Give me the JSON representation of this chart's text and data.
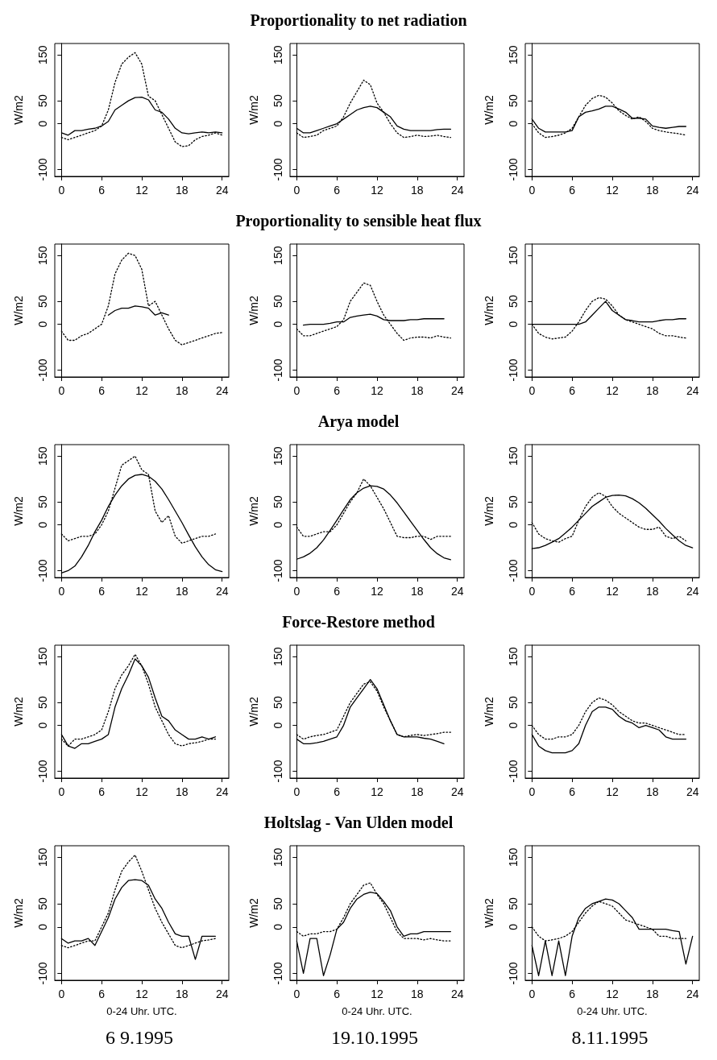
{
  "chart_data": [
    {
      "type": "line",
      "ylabel": "W/m2",
      "xlim": [
        -1,
        25
      ],
      "ylim": [
        -115,
        175
      ],
      "xticks": [
        0,
        6,
        12,
        18,
        24
      ],
      "yticks": [
        -100,
        0,
        50,
        150
      ],
      "x": [
        0,
        1,
        2,
        3,
        4,
        5,
        6,
        7,
        8,
        9,
        10,
        11,
        12,
        13,
        14,
        15,
        16,
        17,
        18,
        19,
        20,
        21,
        22,
        23,
        24
      ],
      "marker": "none",
      "series": [
        {
          "color": "#000000",
          "line_style": "solid",
          "values": [
            -20,
            -25,
            -15,
            -15,
            -12,
            -10,
            -5,
            5,
            30,
            40,
            50,
            57,
            58,
            52,
            30,
            25,
            10,
            -10,
            -20,
            -22,
            -20,
            -18,
            -20,
            -18,
            -20
          ]
        },
        {
          "color": "#000000",
          "line_style": "dotted",
          "values": [
            -30,
            -35,
            -30,
            -25,
            -20,
            -15,
            -5,
            30,
            90,
            130,
            145,
            155,
            130,
            60,
            50,
            20,
            -10,
            -40,
            -50,
            -48,
            -35,
            -28,
            -25,
            -20,
            -25
          ]
        }
      ]
    },
    {
      "type": "line",
      "title": "Proportionality to net radiation",
      "ylabel": "W/m2",
      "xlim": [
        -1,
        25
      ],
      "ylim": [
        -115,
        175
      ],
      "xticks": [
        0,
        6,
        12,
        18,
        24
      ],
      "yticks": [
        -100,
        0,
        50,
        150
      ],
      "x": [
        0,
        1,
        2,
        3,
        4,
        5,
        6,
        7,
        8,
        9,
        10,
        11,
        12,
        13,
        14,
        15,
        16,
        17,
        18,
        19,
        20,
        21,
        22,
        23
      ],
      "marker": "none",
      "series": [
        {
          "color": "#000000",
          "line_style": "solid",
          "values": [
            -10,
            -20,
            -20,
            -15,
            -10,
            -5,
            0,
            10,
            20,
            30,
            35,
            38,
            35,
            25,
            15,
            -5,
            -12,
            -15,
            -15,
            -15,
            -15,
            -13,
            -12,
            -12
          ]
        },
        {
          "color": "#000000",
          "line_style": "dotted",
          "values": [
            -20,
            -30,
            -28,
            -25,
            -15,
            -10,
            -5,
            15,
            45,
            70,
            95,
            85,
            45,
            25,
            0,
            -20,
            -30,
            -28,
            -25,
            -28,
            -27,
            -25,
            -28,
            -30
          ]
        }
      ]
    },
    {
      "type": "line",
      "ylabel": "W/m2",
      "xlim": [
        -1,
        25
      ],
      "ylim": [
        -115,
        175
      ],
      "xticks": [
        0,
        6,
        12,
        18,
        24
      ],
      "yticks": [
        -100,
        0,
        50,
        150
      ],
      "x": [
        0,
        1,
        2,
        3,
        4,
        5,
        6,
        7,
        8,
        9,
        10,
        11,
        12,
        13,
        14,
        15,
        16,
        17,
        18,
        19,
        20,
        21,
        22,
        23
      ],
      "marker": "none",
      "series": [
        {
          "color": "#000000",
          "line_style": "solid",
          "values": [
            10,
            -10,
            -18,
            -18,
            -18,
            -18,
            -15,
            15,
            25,
            28,
            32,
            38,
            38,
            32,
            25,
            12,
            12,
            10,
            -5,
            -8,
            -10,
            -8,
            -6,
            -6
          ]
        },
        {
          "color": "#000000",
          "line_style": "dotted",
          "values": [
            0,
            -20,
            -30,
            -28,
            -25,
            -20,
            -10,
            15,
            40,
            55,
            62,
            58,
            45,
            28,
            18,
            10,
            15,
            5,
            -10,
            -15,
            -18,
            -20,
            -22,
            -25
          ]
        }
      ]
    },
    {
      "type": "line",
      "ylabel": "W/m2",
      "xlim": [
        -1,
        25
      ],
      "ylim": [
        -115,
        175
      ],
      "xticks": [
        0,
        6,
        12,
        18,
        24
      ],
      "yticks": [
        -100,
        0,
        50,
        150
      ],
      "x": [
        0,
        1,
        2,
        3,
        4,
        5,
        6,
        7,
        8,
        9,
        10,
        11,
        12,
        13,
        14,
        15,
        16,
        17,
        18,
        19,
        20,
        21,
        22,
        23,
        24
      ],
      "marker": "none",
      "series": [
        {
          "color": "#000000",
          "line_style": "solid",
          "values": [
            null,
            null,
            null,
            null,
            null,
            null,
            null,
            20,
            30,
            35,
            35,
            40,
            38,
            35,
            20,
            25,
            20,
            null,
            null,
            null,
            null,
            null,
            null,
            null,
            null
          ]
        },
        {
          "color": "#000000",
          "line_style": "dotted",
          "values": [
            -15,
            -35,
            -35,
            -25,
            -20,
            -10,
            0,
            40,
            110,
            140,
            155,
            150,
            120,
            40,
            50,
            20,
            -10,
            -35,
            -45,
            -40,
            -35,
            -30,
            -25,
            -20,
            -18
          ]
        }
      ]
    },
    {
      "type": "line",
      "title": "Proportionality to sensible heat flux",
      "ylabel": "W/m2",
      "xlim": [
        -1,
        25
      ],
      "ylim": [
        -115,
        175
      ],
      "xticks": [
        0,
        6,
        12,
        18,
        24
      ],
      "yticks": [
        -100,
        0,
        50,
        150
      ],
      "x": [
        0,
        1,
        2,
        3,
        4,
        5,
        6,
        7,
        8,
        9,
        10,
        11,
        12,
        13,
        14,
        15,
        16,
        17,
        18,
        19,
        20,
        21,
        22,
        23
      ],
      "marker": "none",
      "series": [
        {
          "color": "#000000",
          "line_style": "solid",
          "values": [
            null,
            -2,
            0,
            0,
            0,
            2,
            5,
            5,
            15,
            18,
            20,
            22,
            18,
            10,
            8,
            8,
            8,
            10,
            10,
            12,
            12,
            12,
            12,
            null
          ]
        },
        {
          "color": "#000000",
          "line_style": "dotted",
          "values": [
            -10,
            -25,
            -25,
            -20,
            -15,
            -10,
            -5,
            10,
            50,
            70,
            90,
            85,
            50,
            20,
            0,
            -20,
            -35,
            -30,
            -28,
            -28,
            -30,
            -25,
            -28,
            -30
          ]
        }
      ]
    },
    {
      "type": "line",
      "ylabel": "W/m2",
      "xlim": [
        -1,
        25
      ],
      "ylim": [
        -115,
        175
      ],
      "xticks": [
        0,
        6,
        12,
        18,
        24
      ],
      "yticks": [
        -100,
        0,
        50,
        150
      ],
      "x": [
        0,
        1,
        2,
        3,
        4,
        5,
        6,
        7,
        8,
        9,
        10,
        11,
        12,
        13,
        14,
        15,
        16,
        17,
        18,
        19,
        20,
        21,
        22,
        23
      ],
      "marker": "none",
      "series": [
        {
          "color": "#000000",
          "line_style": "solid",
          "values": [
            0,
            0,
            0,
            0,
            0,
            0,
            0,
            0,
            5,
            20,
            35,
            50,
            30,
            20,
            10,
            8,
            5,
            5,
            5,
            8,
            10,
            10,
            12,
            12
          ]
        },
        {
          "color": "#000000",
          "line_style": "dotted",
          "values": [
            0,
            -20,
            -28,
            -32,
            -30,
            -28,
            -15,
            5,
            30,
            50,
            58,
            55,
            40,
            20,
            10,
            5,
            0,
            -5,
            -10,
            -20,
            -25,
            -25,
            -28,
            -30
          ]
        }
      ]
    },
    {
      "type": "line",
      "ylabel": "W/m2",
      "xlim": [
        -1,
        25
      ],
      "ylim": [
        -115,
        175
      ],
      "xticks": [
        0,
        6,
        12,
        18,
        24
      ],
      "yticks": [
        -100,
        0,
        50,
        150
      ],
      "x": [
        0,
        1,
        2,
        3,
        4,
        5,
        6,
        7,
        8,
        9,
        10,
        11,
        12,
        13,
        14,
        15,
        16,
        17,
        18,
        19,
        20,
        21,
        22,
        23,
        24
      ],
      "marker": "none",
      "series": [
        {
          "color": "#000000",
          "line_style": "solid",
          "values": [
            -105,
            -100,
            -90,
            -70,
            -45,
            -15,
            10,
            40,
            65,
            85,
            100,
            108,
            110,
            106,
            95,
            78,
            55,
            30,
            5,
            -22,
            -48,
            -70,
            -87,
            -98,
            -102
          ]
        },
        {
          "color": "#000000",
          "line_style": "dotted",
          "values": [
            -20,
            -35,
            -30,
            -25,
            -25,
            -20,
            0,
            30,
            80,
            130,
            140,
            150,
            120,
            110,
            30,
            5,
            20,
            -25,
            -40,
            -35,
            -30,
            -25,
            -25,
            -20,
            null
          ]
        }
      ]
    },
    {
      "type": "line",
      "title": "Arya model",
      "ylabel": "W/m2",
      "xlim": [
        -1,
        25
      ],
      "ylim": [
        -115,
        175
      ],
      "xticks": [
        0,
        6,
        12,
        18,
        24
      ],
      "yticks": [
        -100,
        0,
        50,
        150
      ],
      "x": [
        0,
        1,
        2,
        3,
        4,
        5,
        6,
        7,
        8,
        9,
        10,
        11,
        12,
        13,
        14,
        15,
        16,
        17,
        18,
        19,
        20,
        21,
        22,
        23
      ],
      "marker": "none",
      "series": [
        {
          "color": "#000000",
          "line_style": "solid",
          "values": [
            -75,
            -70,
            -62,
            -50,
            -33,
            -12,
            10,
            33,
            55,
            70,
            80,
            85,
            84,
            78,
            65,
            48,
            28,
            8,
            -12,
            -32,
            -50,
            -63,
            -72,
            -76
          ]
        },
        {
          "color": "#000000",
          "line_style": "dotted",
          "values": [
            -5,
            -25,
            -25,
            -20,
            -15,
            -15,
            0,
            25,
            50,
            70,
            100,
            85,
            60,
            35,
            5,
            -25,
            -28,
            -28,
            -25,
            -25,
            -32,
            -25,
            -25,
            -25
          ]
        }
      ]
    },
    {
      "type": "line",
      "ylabel": "W/m2",
      "xlim": [
        -1,
        25
      ],
      "ylim": [
        -115,
        175
      ],
      "xticks": [
        0,
        6,
        12,
        18,
        24
      ],
      "yticks": [
        -100,
        0,
        50,
        150
      ],
      "x": [
        0,
        1,
        2,
        3,
        4,
        5,
        6,
        7,
        8,
        9,
        10,
        11,
        12,
        13,
        14,
        15,
        16,
        17,
        18,
        19,
        20,
        21,
        22,
        23,
        24
      ],
      "marker": "none",
      "series": [
        {
          "color": "#000000",
          "line_style": "solid",
          "values": [
            -52,
            -50,
            -45,
            -38,
            -30,
            -18,
            -5,
            10,
            25,
            40,
            50,
            60,
            64,
            65,
            63,
            57,
            48,
            36,
            22,
            8,
            -8,
            -22,
            -35,
            -45,
            -50
          ]
        },
        {
          "color": "#000000",
          "line_style": "dotted",
          "values": [
            5,
            -20,
            -30,
            -35,
            -38,
            -30,
            -25,
            10,
            40,
            60,
            70,
            62,
            40,
            25,
            15,
            5,
            -5,
            -10,
            -10,
            -5,
            -25,
            -30,
            -25,
            -35,
            null
          ]
        }
      ]
    },
    {
      "type": "line",
      "ylabel": "W/m2",
      "xlim": [
        -1,
        25
      ],
      "ylim": [
        -115,
        175
      ],
      "xticks": [
        0,
        6,
        12,
        18,
        24
      ],
      "yticks": [
        -100,
        0,
        50,
        150
      ],
      "x": [
        0,
        1,
        2,
        3,
        4,
        5,
        6,
        7,
        8,
        9,
        10,
        11,
        12,
        13,
        14,
        15,
        16,
        17,
        18,
        19,
        20,
        21,
        22,
        23
      ],
      "marker": "none",
      "series": [
        {
          "color": "#000000",
          "line_style": "solid",
          "values": [
            -20,
            -45,
            -50,
            -40,
            -40,
            -35,
            -30,
            -20,
            40,
            80,
            110,
            145,
            130,
            105,
            60,
            20,
            10,
            -10,
            -20,
            -30,
            -30,
            -25,
            -30,
            -25
          ]
        },
        {
          "color": "#000000",
          "line_style": "dotted",
          "values": [
            -30,
            -45,
            -30,
            -30,
            -25,
            -20,
            -10,
            30,
            80,
            110,
            130,
            155,
            130,
            90,
            40,
            10,
            -20,
            -40,
            -45,
            -40,
            -38,
            -35,
            -30,
            -30
          ]
        }
      ]
    },
    {
      "type": "line",
      "title": "Force-Restore method",
      "ylabel": "W/m2",
      "xlim": [
        -1,
        25
      ],
      "ylim": [
        -115,
        175
      ],
      "xticks": [
        0,
        6,
        12,
        18,
        24
      ],
      "yticks": [
        -100,
        0,
        50,
        150
      ],
      "x": [
        0,
        1,
        2,
        3,
        4,
        5,
        6,
        7,
        8,
        9,
        10,
        11,
        12,
        13,
        14,
        15,
        16,
        17,
        18,
        19,
        20,
        21,
        22,
        23
      ],
      "marker": "none",
      "series": [
        {
          "color": "#000000",
          "line_style": "solid",
          "values": [
            -30,
            -40,
            -40,
            -38,
            -35,
            -30,
            -25,
            0,
            40,
            60,
            80,
            100,
            80,
            45,
            10,
            -20,
            -25,
            -25,
            -25,
            -28,
            -30,
            -35,
            -40,
            null
          ]
        },
        {
          "color": "#000000",
          "line_style": "dotted",
          "values": [
            -20,
            -30,
            -25,
            -22,
            -20,
            -15,
            -10,
            20,
            50,
            70,
            90,
            95,
            75,
            40,
            10,
            -20,
            -25,
            -22,
            -20,
            -22,
            -20,
            -18,
            -15,
            -15
          ]
        }
      ]
    },
    {
      "type": "line",
      "ylabel": "W/m2",
      "xlim": [
        -1,
        25
      ],
      "ylim": [
        -115,
        175
      ],
      "xticks": [
        0,
        6,
        12,
        18,
        24
      ],
      "yticks": [
        -100,
        0,
        50,
        150
      ],
      "x": [
        0,
        1,
        2,
        3,
        4,
        5,
        6,
        7,
        8,
        9,
        10,
        11,
        12,
        13,
        14,
        15,
        16,
        17,
        18,
        19,
        20,
        21,
        22,
        23
      ],
      "marker": "none",
      "series": [
        {
          "color": "#000000",
          "line_style": "solid",
          "values": [
            -20,
            -45,
            -55,
            -60,
            -60,
            -60,
            -55,
            -40,
            0,
            30,
            40,
            40,
            35,
            20,
            10,
            5,
            -5,
            0,
            -5,
            -10,
            -25,
            -30,
            -30,
            -30
          ]
        },
        {
          "color": "#000000",
          "line_style": "dotted",
          "values": [
            0,
            -20,
            -30,
            -30,
            -25,
            -25,
            -20,
            0,
            30,
            50,
            60,
            55,
            45,
            30,
            20,
            10,
            5,
            5,
            0,
            -5,
            -10,
            -15,
            -20,
            -20
          ]
        }
      ]
    },
    {
      "type": "line",
      "ylabel": "W/m2",
      "xlabel": "0-24 Uhr. UTC.",
      "annotations": [
        "6 9.1995"
      ],
      "xlim": [
        -1,
        25
      ],
      "ylim": [
        -115,
        175
      ],
      "xticks": [
        0,
        6,
        12,
        18,
        24
      ],
      "yticks": [
        -100,
        0,
        50,
        150
      ],
      "x": [
        0,
        1,
        2,
        3,
        4,
        5,
        6,
        7,
        8,
        9,
        10,
        11,
        12,
        13,
        14,
        15,
        16,
        17,
        18,
        19,
        20,
        21,
        22,
        23
      ],
      "marker": "none",
      "series": [
        {
          "color": "#000000",
          "line_style": "solid",
          "values": [
            -25,
            -35,
            -30,
            -30,
            -25,
            -40,
            -10,
            20,
            60,
            85,
            100,
            102,
            100,
            90,
            60,
            40,
            10,
            -15,
            -20,
            -20,
            -70,
            -20,
            -20,
            -20
          ]
        },
        {
          "color": "#000000",
          "line_style": "dotted",
          "values": [
            -40,
            -45,
            -40,
            -35,
            -30,
            -30,
            0,
            30,
            80,
            120,
            140,
            155,
            120,
            80,
            40,
            10,
            -15,
            -40,
            -45,
            -40,
            -35,
            -30,
            -28,
            -25
          ]
        }
      ]
    },
    {
      "type": "line",
      "title": "Holtslag - Van Ulden model",
      "ylabel": "W/m2",
      "xlabel": "0-24 Uhr. UTC.",
      "annotations": [
        "19.10.1995"
      ],
      "xlim": [
        -1,
        25
      ],
      "ylim": [
        -115,
        175
      ],
      "xticks": [
        0,
        6,
        12,
        18,
        24
      ],
      "yticks": [
        -100,
        0,
        50,
        150
      ],
      "x": [
        0,
        1,
        2,
        3,
        4,
        5,
        6,
        7,
        8,
        9,
        10,
        11,
        12,
        13,
        14,
        15,
        16,
        17,
        18,
        19,
        20,
        21,
        22,
        23
      ],
      "marker": "none",
      "series": [
        {
          "color": "#000000",
          "line_style": "solid",
          "values": [
            -30,
            -100,
            -25,
            -25,
            -105,
            -60,
            -5,
            10,
            40,
            60,
            70,
            75,
            72,
            55,
            35,
            0,
            -20,
            -15,
            -15,
            -10,
            -10,
            -10,
            -10,
            -10
          ]
        },
        {
          "color": "#000000",
          "line_style": "dotted",
          "values": [
            -10,
            -20,
            -15,
            -15,
            -10,
            -10,
            -5,
            20,
            50,
            70,
            90,
            95,
            70,
            50,
            20,
            -10,
            -25,
            -25,
            -25,
            -28,
            -25,
            -28,
            -30,
            -30
          ]
        }
      ]
    },
    {
      "type": "line",
      "ylabel": "W/m2",
      "xlabel": "0-24 Uhr. UTC.",
      "annotations": [
        "8.11.1995"
      ],
      "xlim": [
        -1,
        25
      ],
      "ylim": [
        -115,
        175
      ],
      "xticks": [
        0,
        6,
        12,
        18,
        24
      ],
      "yticks": [
        -100,
        0,
        50,
        150
      ],
      "x": [
        0,
        1,
        2,
        3,
        4,
        5,
        6,
        7,
        8,
        9,
        10,
        11,
        12,
        13,
        14,
        15,
        16,
        17,
        18,
        19,
        20,
        21,
        22,
        23,
        24
      ],
      "marker": "none",
      "series": [
        {
          "color": "#000000",
          "line_style": "solid",
          "values": [
            -40,
            -105,
            -30,
            -105,
            -30,
            -105,
            -20,
            20,
            40,
            50,
            55,
            60,
            58,
            50,
            35,
            20,
            -5,
            -5,
            -5,
            -5,
            -5,
            -8,
            -10,
            -80,
            -20
          ]
        },
        {
          "color": "#000000",
          "line_style": "dotted",
          "values": [
            0,
            -20,
            -30,
            -28,
            -25,
            -20,
            -10,
            10,
            30,
            45,
            55,
            50,
            45,
            30,
            15,
            10,
            5,
            0,
            -5,
            -20,
            -20,
            -25,
            -25,
            -25,
            null
          ]
        }
      ]
    }
  ]
}
